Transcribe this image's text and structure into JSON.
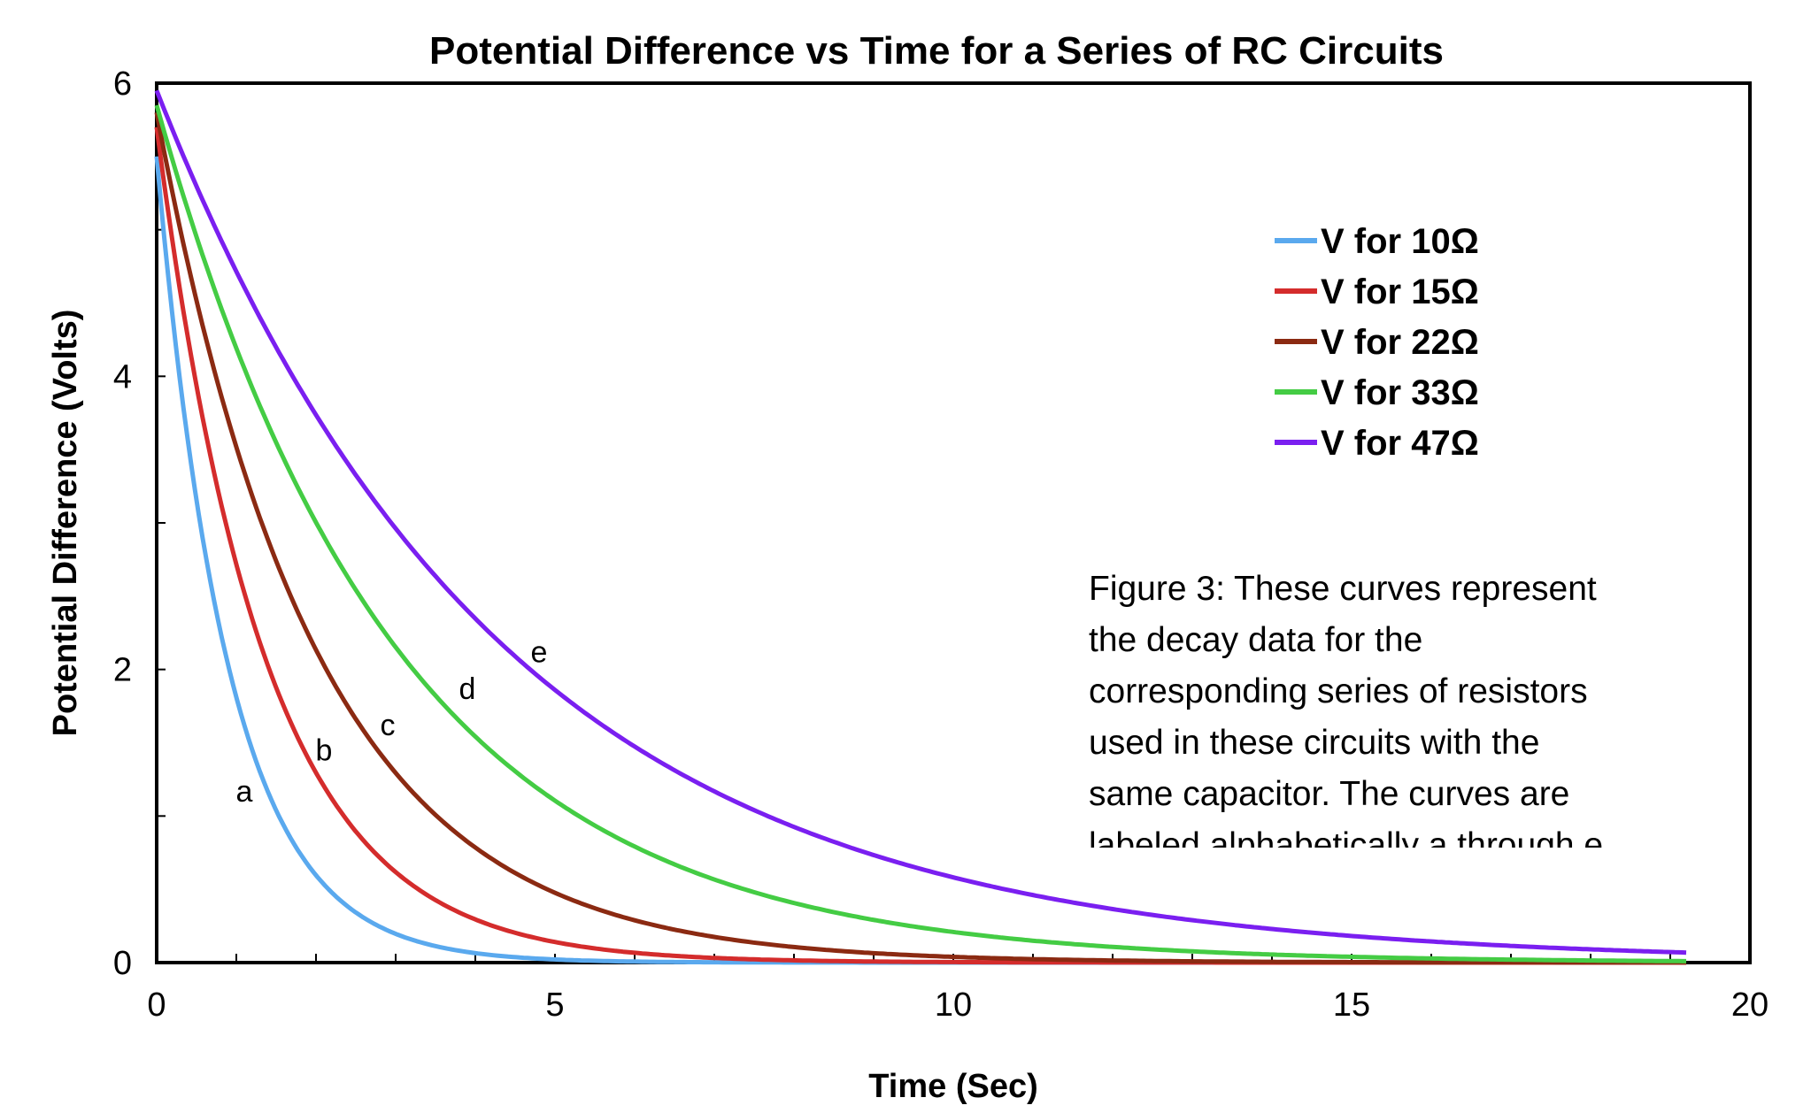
{
  "chart_data": {
    "type": "line",
    "title": "Potential Difference vs Time for a Series of RC Circuits",
    "xlabel": "Time (Sec)",
    "ylabel": "Potential Difference (Volts)",
    "xlim": [
      0,
      20
    ],
    "ylim": [
      0,
      6
    ],
    "x_ticks": [
      0,
      5,
      10,
      15,
      20
    ],
    "y_ticks": [
      0,
      2,
      4,
      6
    ],
    "grid": false,
    "legend_position": "top-right",
    "series": [
      {
        "name": "V for 10Ω",
        "label": "a",
        "label_x": 1.1,
        "label_y": 1.1,
        "color": "#5aa9ee",
        "v0": 5.5,
        "tau": 0.9,
        "t_end": 19.2
      },
      {
        "name": "V for 15Ω",
        "label": "b",
        "label_x": 2.1,
        "label_y": 1.38,
        "color": "#d42c2c",
        "v0": 5.7,
        "tau": 1.35,
        "t_end": 19.2
      },
      {
        "name": "V for 22Ω",
        "label": "c",
        "label_x": 2.9,
        "label_y": 1.55,
        "color": "#8b2a12",
        "v0": 5.8,
        "tau": 2.0,
        "t_end": 19.2
      },
      {
        "name": "V for 33Ω",
        "label": "d",
        "label_x": 3.9,
        "label_y": 1.8,
        "color": "#44cc44",
        "v0": 5.85,
        "tau": 3.0,
        "t_end": 19.2
      },
      {
        "name": "V for 47Ω",
        "label": "e",
        "label_x": 4.8,
        "label_y": 2.05,
        "color": "#7a1ff0",
        "v0": 5.95,
        "tau": 4.3,
        "t_end": 19.2
      }
    ],
    "annotation": {
      "lines": [
        "Figure 3:  These curves represent",
        "the decay data for the",
        "corresponding series of resistors",
        "used in these circuits with the",
        "same capacitor. The curves are",
        "labeled alphabetically a through e"
      ]
    }
  }
}
